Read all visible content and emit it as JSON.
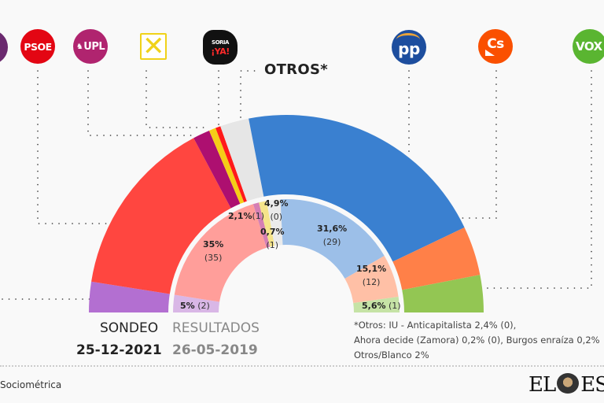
{
  "chart_data": {
    "type": "pie",
    "subtype": "double-semicircle-parliament",
    "series": [
      {
        "name": "SONDEO",
        "date": "25-12-2021",
        "segments": [
          {
            "party": "Podemos",
            "color": "#b36fd1",
            "share_deg": 9
          },
          {
            "party": "PSOE",
            "color": "#ff4640",
            "share_deg": 53
          },
          {
            "party": "UPL",
            "color": "#ad0f70",
            "share_deg": 5
          },
          {
            "party": "Por Ávila",
            "color": "#f5cd17",
            "share_deg": 2
          },
          {
            "party": "Soria ¡Ya!",
            "color": "#ff1a1a",
            "share_deg": 1.5
          },
          {
            "party": "Otros",
            "color": "#e6e6e6",
            "share_deg": 8.5
          },
          {
            "party": "PP",
            "color": "#3a80d0",
            "share_deg": 75.5
          },
          {
            "party": "Cs",
            "color": "#ff8048",
            "share_deg": 14.5
          },
          {
            "party": "VOX",
            "color": "#93c653",
            "share_deg": 11
          }
        ]
      },
      {
        "name": "RESULTADOS",
        "date": "26-05-2019",
        "segments": [
          {
            "party": "Podemos",
            "color": "#d9b7e6",
            "label_pct": "5%",
            "label_seats": "(2)",
            "share_deg": 9
          },
          {
            "party": "PSOE",
            "color": "#ff9e9a",
            "label_pct": "35%",
            "label_seats": "(35)",
            "share_deg": 64
          },
          {
            "party": "UPL",
            "color": "#d57fb4",
            "label_pct": "2,1%",
            "label_seats": "(1)",
            "share_deg": 3
          },
          {
            "party": "Por Ávila",
            "color": "#f5e48a",
            "label_pct": "0,7%",
            "label_seats": "(1)",
            "share_deg": 4
          },
          {
            "party": "Otros",
            "color": "#ebebeb",
            "label_pct": "4,9%",
            "label_seats": "(0)",
            "share_deg": 7
          },
          {
            "party": "PP",
            "color": "#9cbfe8",
            "label_pct": "31,6%",
            "label_seats": "(29)",
            "share_deg": 63
          },
          {
            "party": "Cs",
            "color": "#ffc0a6",
            "label_pct": "15,1%",
            "label_seats": "(12)",
            "share_deg": 22
          },
          {
            "party": "VOX",
            "color": "#c6e3a6",
            "label_pct": "5,6%",
            "label_seats": "(1)",
            "share_deg": 8
          }
        ]
      }
    ]
  },
  "logos": {
    "psoe": {
      "text": "PSOE",
      "color": "#e30613"
    },
    "upl": {
      "text": "UPL",
      "color": "#b0246f"
    },
    "soria": {
      "top": "SORIA",
      "bottom": "¡YA!"
    },
    "pp": {
      "text": "pp",
      "color": "#1d4e9e"
    },
    "cs": {
      "text": "Cs",
      "color": "#fa5000"
    },
    "vox": {
      "text": "VOX",
      "color": "#5ab531"
    }
  },
  "otros_label": "OTROS*",
  "legend": {
    "sondeo_title": "SONDEO",
    "sondeo_date": "25-12-2021",
    "resultados_title": "RESULTADOS",
    "resultados_date": "26-05-2019"
  },
  "note": {
    "line1": "*Otros: IU - Anticapitalista 2,4% (0),",
    "line2": "Ahora decide (Zamora) 0,2% (0), Burgos enraíza 0,2%",
    "line3": "Otros/Blanco 2%"
  },
  "source": "Sociométrica",
  "brand": {
    "left": "EL",
    "right": "ESP"
  }
}
